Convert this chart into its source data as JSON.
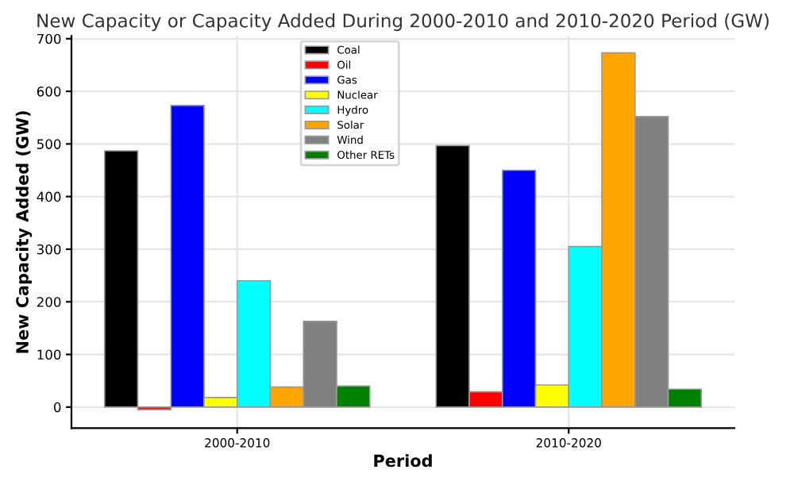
{
  "chart_data": {
    "type": "bar",
    "title": "New Capacity or Capacity Added During 2000-2010 and 2010-2020 Period (GW)",
    "xlabel": "Period",
    "ylabel": "New Capacity Added (GW)",
    "categories": [
      "2000-2010",
      "2010-2020"
    ],
    "series": [
      {
        "name": "Coal",
        "color": "#000000",
        "values": [
          487,
          497
        ]
      },
      {
        "name": "Oil",
        "color": "#ff0000",
        "values": [
          -5,
          29
        ]
      },
      {
        "name": "Gas",
        "color": "#0000ff",
        "values": [
          573,
          450
        ]
      },
      {
        "name": "Nuclear",
        "color": "#ffff00",
        "values": [
          18,
          42
        ]
      },
      {
        "name": "Hydro",
        "color": "#00ffff",
        "values": [
          240,
          305
        ]
      },
      {
        "name": "Solar",
        "color": "#ffa500",
        "values": [
          38,
          673
        ]
      },
      {
        "name": "Wind",
        "color": "#808080",
        "values": [
          163,
          552
        ]
      },
      {
        "name": "Other RETs",
        "color": "#008000",
        "values": [
          40,
          34
        ]
      }
    ],
    "ylim": [
      -40,
      705
    ],
    "yticks": [
      0,
      100,
      200,
      300,
      400,
      500,
      600,
      700
    ],
    "grid": true,
    "legend": "top"
  }
}
